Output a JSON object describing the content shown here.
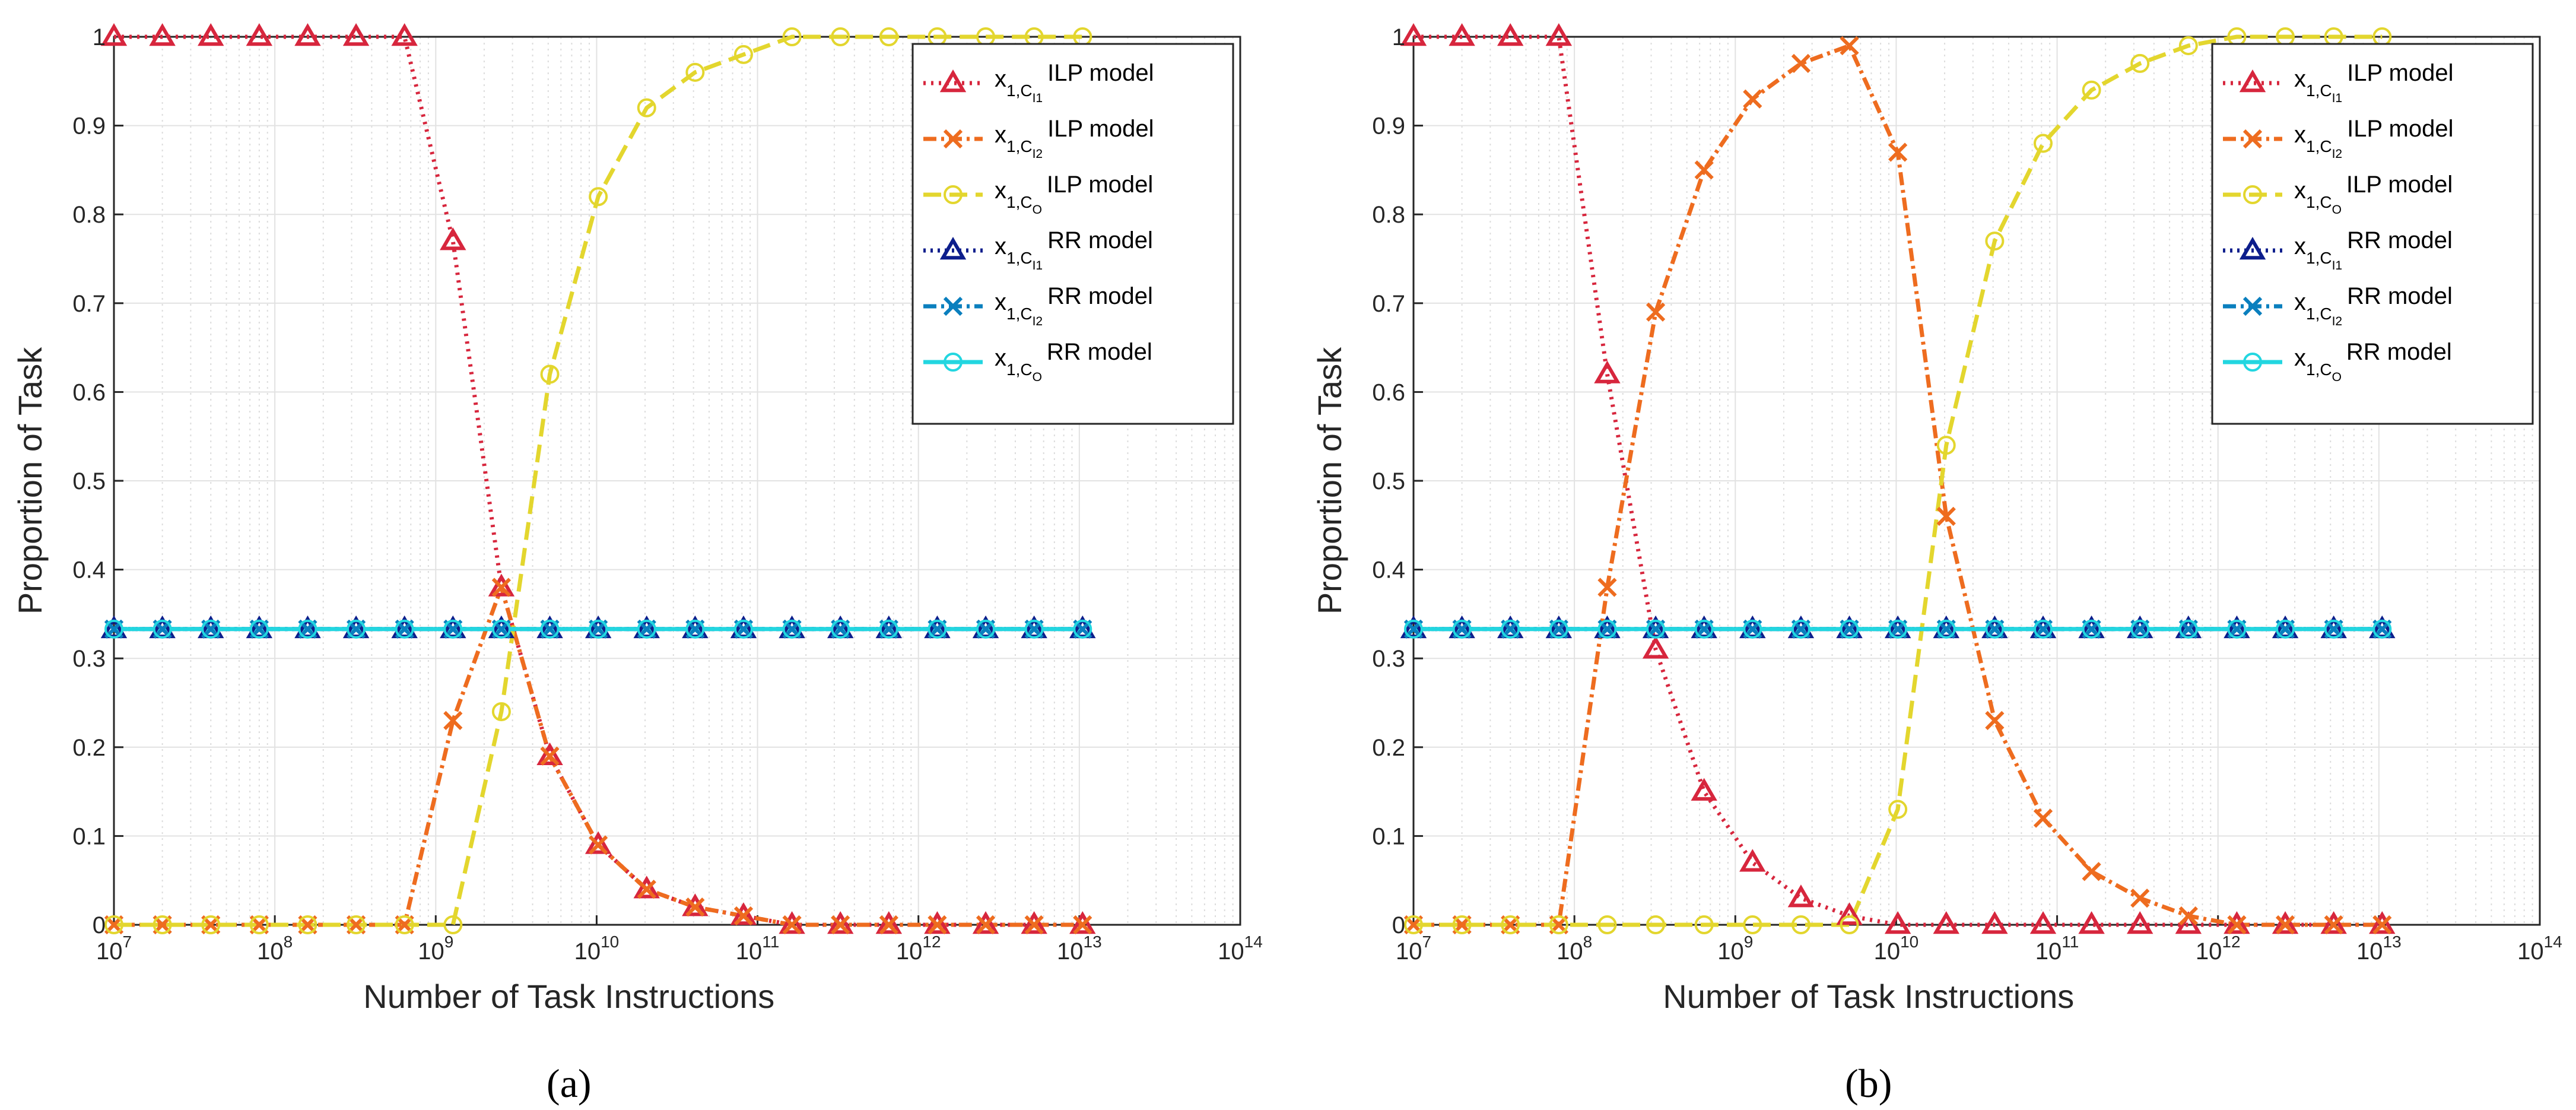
{
  "chart_data": [
    {
      "type": "line",
      "panel_label": "(a)",
      "xlabel": "Number of Task Instructions",
      "ylabel": "Proportion of Task",
      "xscale": "log",
      "xlim": [
        10000000,
        100000000000000
      ],
      "ylim": [
        0,
        1
      ],
      "x_ticks": [
        {
          "base": "10",
          "exp": "7"
        },
        {
          "base": "10",
          "exp": "8"
        },
        {
          "base": "10",
          "exp": "9"
        },
        {
          "base": "10",
          "exp": "10"
        },
        {
          "base": "10",
          "exp": "11"
        },
        {
          "base": "10",
          "exp": "12"
        },
        {
          "base": "10",
          "exp": "13"
        },
        {
          "base": "10",
          "exp": "14"
        }
      ],
      "y_ticks": [
        "0",
        "0.1",
        "0.2",
        "0.3",
        "0.4",
        "0.5",
        "0.6",
        "0.7",
        "0.8",
        "0.9",
        "1"
      ],
      "grid": true,
      "legend_position": "top-right",
      "x_log10": [
        7.0,
        7.301,
        7.602,
        7.903,
        8.204,
        8.505,
        8.806,
        9.107,
        9.408,
        9.709,
        10.01,
        10.311,
        10.612,
        10.913,
        11.214,
        11.515,
        11.816,
        12.117,
        12.418,
        12.719,
        13.02
      ],
      "series": [
        {
          "key": "s1",
          "var": "x",
          "sub": "1,C",
          "subsub": "I1",
          "model": "ILP model",
          "color": "#d7263d",
          "dash": "4,9",
          "marker": "triangle",
          "values": [
            1,
            1,
            1,
            1,
            1,
            1,
            1,
            0.77,
            0.38,
            0.19,
            0.09,
            0.04,
            0.02,
            0.01,
            0,
            0,
            0,
            0,
            0,
            0,
            0
          ]
        },
        {
          "key": "s2",
          "var": "x",
          "sub": "1,C",
          "subsub": "I2",
          "model": "ILP model",
          "color": "#ee6c1f",
          "dash": "22,8,5,8",
          "marker": "x",
          "values": [
            0,
            0,
            0,
            0,
            0,
            0,
            0,
            0.23,
            0.38,
            0.19,
            0.09,
            0.04,
            0.02,
            0.01,
            0,
            0,
            0,
            0,
            0,
            0,
            0
          ]
        },
        {
          "key": "s3",
          "var": "x",
          "sub": "1,C",
          "subsub": "O",
          "model": "ILP model",
          "color": "#e3d62e",
          "dash": "30,14",
          "marker": "circle",
          "values": [
            0,
            0,
            0,
            0,
            0,
            0,
            0,
            0,
            0.24,
            0.62,
            0.82,
            0.92,
            0.96,
            0.98,
            1,
            1,
            1,
            1,
            1,
            1,
            1
          ]
        },
        {
          "key": "s4",
          "var": "x",
          "sub": "1,C",
          "subsub": "I1",
          "model": "RR model",
          "color": "#0d1e8c",
          "dash": "4,8",
          "marker": "triangle",
          "values": [
            0.333,
            0.333,
            0.333,
            0.333,
            0.333,
            0.333,
            0.333,
            0.333,
            0.333,
            0.333,
            0.333,
            0.333,
            0.333,
            0.333,
            0.333,
            0.333,
            0.333,
            0.333,
            0.333,
            0.333,
            0.333
          ]
        },
        {
          "key": "s5",
          "var": "x",
          "sub": "1,C",
          "subsub": "I2",
          "model": "RR model",
          "color": "#0a7fbe",
          "dash": "22,8,5,8",
          "marker": "x",
          "values": [
            0.333,
            0.333,
            0.333,
            0.333,
            0.333,
            0.333,
            0.333,
            0.333,
            0.333,
            0.333,
            0.333,
            0.333,
            0.333,
            0.333,
            0.333,
            0.333,
            0.333,
            0.333,
            0.333,
            0.333,
            0.333
          ]
        },
        {
          "key": "s6",
          "var": "x",
          "sub": "1,C",
          "subsub": "O",
          "model": "RR model",
          "color": "#22d6e0",
          "dash": "",
          "marker": "circle",
          "values": [
            0.333,
            0.333,
            0.333,
            0.333,
            0.333,
            0.333,
            0.333,
            0.333,
            0.333,
            0.333,
            0.333,
            0.333,
            0.333,
            0.333,
            0.333,
            0.333,
            0.333,
            0.333,
            0.333,
            0.333,
            0.333
          ]
        }
      ]
    },
    {
      "type": "line",
      "panel_label": "(b)",
      "xlabel": "Number of Task Instructions",
      "ylabel": "Proportion of Task",
      "xscale": "log",
      "xlim": [
        10000000,
        100000000000000
      ],
      "ylim": [
        0,
        1
      ],
      "x_ticks": [
        {
          "base": "10",
          "exp": "7"
        },
        {
          "base": "10",
          "exp": "8"
        },
        {
          "base": "10",
          "exp": "9"
        },
        {
          "base": "10",
          "exp": "10"
        },
        {
          "base": "10",
          "exp": "11"
        },
        {
          "base": "10",
          "exp": "12"
        },
        {
          "base": "10",
          "exp": "13"
        },
        {
          "base": "10",
          "exp": "14"
        }
      ],
      "y_ticks": [
        "0",
        "0.1",
        "0.2",
        "0.3",
        "0.4",
        "0.5",
        "0.6",
        "0.7",
        "0.8",
        "0.9",
        "1"
      ],
      "grid": true,
      "legend_position": "top-right",
      "x_log10": [
        7.0,
        7.301,
        7.602,
        7.903,
        8.204,
        8.505,
        8.806,
        9.107,
        9.408,
        9.709,
        10.01,
        10.311,
        10.612,
        10.913,
        11.214,
        11.515,
        11.816,
        12.117,
        12.418,
        12.719,
        13.02
      ],
      "series": [
        {
          "key": "s1",
          "var": "x",
          "sub": "1,C",
          "subsub": "I1",
          "model": "ILP model",
          "color": "#d7263d",
          "dash": "4,9",
          "marker": "triangle",
          "values": [
            1,
            1,
            1,
            1,
            0.62,
            0.31,
            0.15,
            0.07,
            0.03,
            0.01,
            0,
            0,
            0,
            0,
            0,
            0,
            0,
            0,
            0,
            0,
            0
          ]
        },
        {
          "key": "s2",
          "var": "x",
          "sub": "1,C",
          "subsub": "I2",
          "model": "ILP model",
          "color": "#ee6c1f",
          "dash": "22,8,5,8",
          "marker": "x",
          "values": [
            0,
            0,
            0,
            0,
            0.38,
            0.69,
            0.85,
            0.93,
            0.97,
            0.99,
            0.87,
            0.46,
            0.23,
            0.12,
            0.06,
            0.03,
            0.01,
            0,
            0,
            0,
            0
          ]
        },
        {
          "key": "s3",
          "var": "x",
          "sub": "1,C",
          "subsub": "O",
          "model": "ILP model",
          "color": "#e3d62e",
          "dash": "30,14",
          "marker": "circle",
          "values": [
            0,
            0,
            0,
            0,
            0,
            0,
            0,
            0,
            0,
            0,
            0.13,
            0.54,
            0.77,
            0.88,
            0.94,
            0.97,
            0.99,
            1,
            1,
            1,
            1
          ]
        },
        {
          "key": "s4",
          "var": "x",
          "sub": "1,C",
          "subsub": "I1",
          "model": "RR model",
          "color": "#0d1e8c",
          "dash": "4,8",
          "marker": "triangle",
          "values": [
            0.333,
            0.333,
            0.333,
            0.333,
            0.333,
            0.333,
            0.333,
            0.333,
            0.333,
            0.333,
            0.333,
            0.333,
            0.333,
            0.333,
            0.333,
            0.333,
            0.333,
            0.333,
            0.333,
            0.333,
            0.333
          ]
        },
        {
          "key": "s5",
          "var": "x",
          "sub": "1,C",
          "subsub": "I2",
          "model": "RR model",
          "color": "#0a7fbe",
          "dash": "22,8,5,8",
          "marker": "x",
          "values": [
            0.333,
            0.333,
            0.333,
            0.333,
            0.333,
            0.333,
            0.333,
            0.333,
            0.333,
            0.333,
            0.333,
            0.333,
            0.333,
            0.333,
            0.333,
            0.333,
            0.333,
            0.333,
            0.333,
            0.333,
            0.333
          ]
        },
        {
          "key": "s6",
          "var": "x",
          "sub": "1,C",
          "subsub": "O",
          "model": "RR model",
          "color": "#22d6e0",
          "dash": "",
          "marker": "circle",
          "values": [
            0.333,
            0.333,
            0.333,
            0.333,
            0.333,
            0.333,
            0.333,
            0.333,
            0.333,
            0.333,
            0.333,
            0.333,
            0.333,
            0.333,
            0.333,
            0.333,
            0.333,
            0.333,
            0.333,
            0.333,
            0.333
          ]
        }
      ]
    }
  ]
}
